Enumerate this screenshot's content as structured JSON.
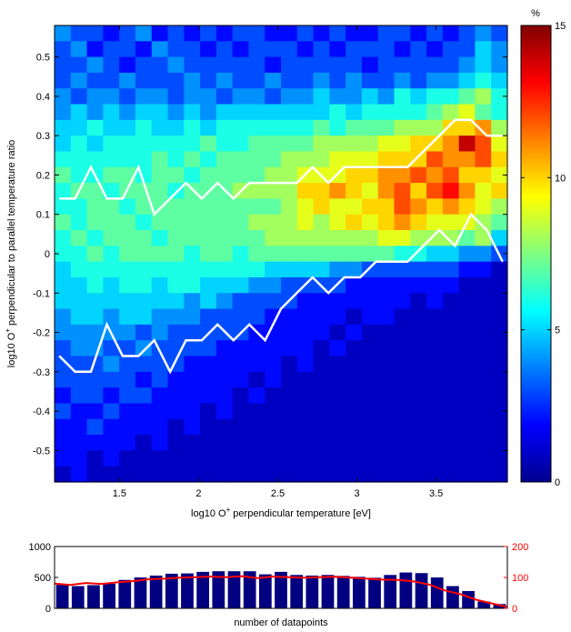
{
  "chart_data": [
    {
      "type": "heatmap",
      "title": "",
      "xlabel_parts": [
        "log10 O",
        "+",
        " perpendicular temperature [eV]"
      ],
      "ylabel_parts": [
        "log10 O",
        "+",
        " perpendicular to parallel temperature ratio"
      ],
      "x_range": [
        1.09,
        3.95
      ],
      "y_range": [
        -0.58,
        0.58
      ],
      "x_bins": 28,
      "y_bins": 29,
      "x_ticks": [
        1.5,
        2,
        2.5,
        3,
        3.5
      ],
      "x_tick_labels": [
        "1.5",
        "2",
        "2.5",
        "3",
        "3.5"
      ],
      "y_ticks": [
        -0.5,
        -0.4,
        -0.3,
        -0.2,
        -0.1,
        0,
        0.1,
        0.2,
        0.3,
        0.4,
        0.5
      ],
      "y_tick_labels": [
        "-0.5",
        "-0.4",
        "-0.3",
        "-0.2",
        "-0.1",
        "0",
        "0.1",
        "0.2",
        "0.3",
        "0.4",
        "0.5"
      ],
      "colorbar": {
        "unit": "%",
        "range": [
          0,
          15
        ],
        "ticks": [
          0,
          5,
          10,
          15
        ],
        "tick_labels": [
          "0",
          "5",
          "10",
          "15"
        ],
        "colormap": "jet"
      },
      "white_lines": [
        {
          "x": [
            1.12,
            1.22,
            1.32,
            1.42,
            1.52,
            1.62,
            1.72,
            1.82,
            1.92,
            2.02,
            2.12,
            2.22,
            2.32,
            2.42,
            2.52,
            2.62,
            2.72,
            2.82,
            2.92,
            3.02,
            3.12,
            3.22,
            3.32,
            3.42,
            3.52,
            3.62,
            3.72,
            3.82,
            3.92
          ],
          "y": [
            0.14,
            0.14,
            0.22,
            0.14,
            0.14,
            0.22,
            0.1,
            0.14,
            0.18,
            0.14,
            0.18,
            0.14,
            0.18,
            0.18,
            0.18,
            0.18,
            0.22,
            0.18,
            0.22,
            0.22,
            0.22,
            0.22,
            0.22,
            0.26,
            0.3,
            0.34,
            0.34,
            0.3,
            0.3
          ]
        },
        {
          "x": [
            1.12,
            1.22,
            1.32,
            1.42,
            1.52,
            1.62,
            1.72,
            1.82,
            1.92,
            2.02,
            2.12,
            2.22,
            2.32,
            2.42,
            2.52,
            2.62,
            2.72,
            2.82,
            2.92,
            3.02,
            3.12,
            3.22,
            3.32,
            3.42,
            3.52,
            3.62,
            3.72,
            3.82,
            3.92
          ],
          "y": [
            -0.26,
            -0.3,
            -0.3,
            -0.18,
            -0.26,
            -0.26,
            -0.22,
            -0.3,
            -0.22,
            -0.22,
            -0.18,
            -0.22,
            -0.18,
            -0.22,
            -0.14,
            -0.1,
            -0.06,
            -0.1,
            -0.06,
            -0.06,
            -0.02,
            -0.02,
            -0.02,
            0.02,
            0.06,
            0.02,
            0.1,
            0.06,
            -0.02
          ]
        }
      ],
      "values": [
        [
          4,
          3,
          3,
          2,
          3,
          4,
          2,
          3,
          2,
          3,
          2,
          3,
          3,
          2,
          2,
          3,
          2,
          3,
          2,
          2,
          3,
          3,
          2,
          3,
          2,
          3,
          4,
          3
        ],
        [
          3,
          4,
          2,
          3,
          3,
          2,
          4,
          3,
          3,
          2,
          3,
          2,
          3,
          3,
          3,
          2,
          3,
          2,
          3,
          3,
          3,
          2,
          3,
          2,
          3,
          3,
          5,
          4
        ],
        [
          3,
          3,
          4,
          3,
          2,
          3,
          3,
          4,
          3,
          3,
          3,
          3,
          3,
          2,
          3,
          3,
          3,
          3,
          3,
          2,
          3,
          3,
          3,
          3,
          3,
          4,
          5,
          4
        ],
        [
          3,
          4,
          3,
          3,
          4,
          3,
          3,
          3,
          4,
          3,
          4,
          3,
          3,
          4,
          3,
          3,
          4,
          3,
          4,
          3,
          3,
          4,
          3,
          4,
          4,
          5,
          6,
          5
        ],
        [
          4,
          3,
          4,
          4,
          3,
          4,
          4,
          3,
          4,
          4,
          3,
          4,
          4,
          3,
          4,
          4,
          5,
          4,
          4,
          5,
          4,
          6,
          5,
          6,
          6,
          7,
          8,
          6
        ],
        [
          4,
          5,
          4,
          5,
          4,
          5,
          5,
          4,
          5,
          4,
          5,
          5,
          5,
          5,
          5,
          5,
          5,
          6,
          5,
          6,
          6,
          6,
          6,
          7,
          8,
          9,
          7,
          6
        ],
        [
          5,
          5,
          6,
          5,
          5,
          6,
          5,
          5,
          6,
          5,
          6,
          6,
          6,
          6,
          6,
          6,
          7,
          6,
          7,
          7,
          7,
          8,
          8,
          8,
          10,
          10,
          11,
          8
        ],
        [
          5,
          6,
          5,
          6,
          6,
          6,
          6,
          6,
          6,
          7,
          6,
          6,
          7,
          7,
          7,
          7,
          8,
          8,
          8,
          8,
          9,
          9,
          10,
          10,
          11,
          14,
          12,
          9
        ],
        [
          6,
          6,
          6,
          6,
          6,
          6,
          7,
          6,
          7,
          6,
          7,
          7,
          7,
          7,
          8,
          8,
          8,
          9,
          9,
          9,
          10,
          10,
          10,
          12,
          11,
          11,
          12,
          10
        ],
        [
          7,
          6,
          6,
          7,
          7,
          6,
          7,
          7,
          6,
          7,
          7,
          7,
          7,
          8,
          8,
          9,
          9,
          9,
          10,
          10,
          11,
          11,
          12,
          11,
          12,
          10,
          10,
          9
        ],
        [
          6,
          7,
          7,
          6,
          7,
          7,
          7,
          6,
          7,
          7,
          7,
          8,
          8,
          8,
          8,
          10,
          10,
          11,
          10,
          9,
          11,
          12,
          10,
          12,
          13,
          11,
          9,
          10
        ],
        [
          6,
          6,
          7,
          7,
          6,
          7,
          7,
          7,
          7,
          7,
          7,
          7,
          7,
          7,
          8,
          9,
          10,
          9,
          9,
          10,
          10,
          12,
          11,
          10,
          11,
          10,
          9,
          8
        ],
        [
          7,
          6,
          7,
          7,
          7,
          6,
          7,
          7,
          7,
          7,
          7,
          7,
          8,
          8,
          8,
          9,
          8,
          9,
          10,
          9,
          10,
          11,
          10,
          9,
          9,
          9,
          8,
          7
        ],
        [
          6,
          7,
          6,
          7,
          7,
          7,
          6,
          7,
          7,
          7,
          7,
          7,
          7,
          8,
          8,
          8,
          8,
          8,
          8,
          8,
          9,
          9,
          8,
          8,
          8,
          7,
          8,
          5
        ],
        [
          6,
          6,
          7,
          6,
          7,
          7,
          7,
          7,
          6,
          7,
          7,
          6,
          7,
          7,
          7,
          7,
          7,
          7,
          7,
          7,
          7,
          6,
          6,
          5,
          5,
          4,
          4,
          3
        ],
        [
          5,
          6,
          6,
          6,
          6,
          6,
          6,
          6,
          6,
          6,
          6,
          6,
          6,
          5,
          5,
          5,
          5,
          4,
          4,
          3,
          3,
          3,
          3,
          3,
          3,
          2,
          2,
          1
        ],
        [
          5,
          5,
          6,
          5,
          6,
          6,
          5,
          6,
          6,
          5,
          5,
          5,
          4,
          4,
          3,
          3,
          3,
          3,
          2,
          2,
          2,
          2,
          2,
          2,
          2,
          1,
          1,
          1
        ],
        [
          5,
          5,
          5,
          5,
          5,
          5,
          5,
          5,
          4,
          5,
          4,
          3,
          3,
          3,
          3,
          2,
          2,
          2,
          2,
          2,
          2,
          2,
          1,
          2,
          1,
          1,
          1,
          1
        ],
        [
          4,
          5,
          5,
          4,
          5,
          5,
          4,
          4,
          4,
          3,
          3,
          3,
          3,
          2,
          2,
          2,
          2,
          2,
          1,
          2,
          2,
          1,
          1,
          1,
          1,
          1,
          1,
          1
        ],
        [
          4,
          4,
          4,
          4,
          4,
          3,
          4,
          3,
          3,
          3,
          3,
          3,
          2,
          2,
          2,
          2,
          2,
          1,
          2,
          1,
          1,
          1,
          1,
          1,
          1,
          1,
          1,
          1
        ],
        [
          3,
          4,
          4,
          3,
          3,
          4,
          3,
          3,
          3,
          3,
          2,
          2,
          2,
          2,
          2,
          2,
          1,
          2,
          1,
          1,
          1,
          1,
          1,
          1,
          1,
          1,
          1,
          1
        ],
        [
          3,
          3,
          3,
          4,
          3,
          3,
          3,
          3,
          2,
          2,
          2,
          2,
          2,
          2,
          1,
          2,
          1,
          1,
          1,
          1,
          1,
          1,
          1,
          1,
          1,
          1,
          1,
          1
        ],
        [
          3,
          3,
          3,
          3,
          3,
          2,
          3,
          2,
          2,
          2,
          2,
          2,
          1,
          2,
          1,
          1,
          1,
          1,
          1,
          1,
          1,
          1,
          1,
          1,
          1,
          1,
          1,
          1
        ],
        [
          2,
          3,
          3,
          2,
          3,
          3,
          2,
          2,
          2,
          2,
          2,
          1,
          2,
          1,
          1,
          1,
          1,
          1,
          1,
          1,
          1,
          1,
          1,
          1,
          1,
          1,
          1,
          1
        ],
        [
          3,
          2,
          2,
          3,
          2,
          2,
          2,
          2,
          2,
          1,
          2,
          1,
          1,
          1,
          1,
          1,
          1,
          1,
          1,
          1,
          1,
          1,
          1,
          1,
          1,
          1,
          1,
          1
        ],
        [
          2,
          2,
          3,
          2,
          2,
          2,
          2,
          1,
          2,
          1,
          1,
          1,
          1,
          1,
          1,
          1,
          1,
          1,
          1,
          1,
          1,
          1,
          1,
          1,
          1,
          1,
          1,
          1
        ],
        [
          2,
          2,
          2,
          2,
          2,
          1,
          2,
          1,
          1,
          1,
          1,
          1,
          1,
          1,
          1,
          1,
          1,
          1,
          1,
          1,
          1,
          1,
          1,
          1,
          1,
          1,
          1,
          1
        ],
        [
          2,
          2,
          1,
          2,
          1,
          1,
          1,
          1,
          1,
          1,
          1,
          1,
          1,
          1,
          1,
          1,
          1,
          1,
          1,
          1,
          1,
          1,
          1,
          1,
          1,
          1,
          1,
          1
        ],
        [
          1,
          2,
          1,
          1,
          1,
          1,
          1,
          1,
          1,
          1,
          1,
          1,
          1,
          1,
          1,
          1,
          1,
          1,
          1,
          1,
          1,
          1,
          1,
          1,
          1,
          1,
          1,
          1
        ]
      ]
    },
    {
      "type": "bar",
      "title": "",
      "xlabel": "number of datapoints",
      "ylim_left": [
        0,
        1000
      ],
      "y_ticks_left": [
        0,
        500,
        1000
      ],
      "y_tick_labels_left": [
        "0",
        "500",
        "1000"
      ],
      "ylim_right": [
        0,
        200
      ],
      "y_ticks_right": [
        0,
        100,
        200
      ],
      "y_tick_labels_right": [
        "0",
        "100",
        "200"
      ],
      "bar_color": "#000080",
      "line_color": "#ff0000",
      "right_axis_color": "#ff0000",
      "bars": [
        380,
        360,
        375,
        400,
        460,
        500,
        530,
        560,
        565,
        590,
        600,
        600,
        600,
        550,
        590,
        540,
        530,
        540,
        525,
        510,
        495,
        540,
        580,
        570,
        500,
        360,
        280,
        110,
        70
      ],
      "line": [
        80,
        76,
        82,
        79,
        84,
        88,
        94,
        96,
        99,
        101,
        103,
        101,
        104,
        98,
        103,
        101,
        99,
        101,
        102,
        99,
        96,
        93,
        92,
        87,
        77,
        58,
        46,
        28,
        16,
        5
      ]
    }
  ]
}
